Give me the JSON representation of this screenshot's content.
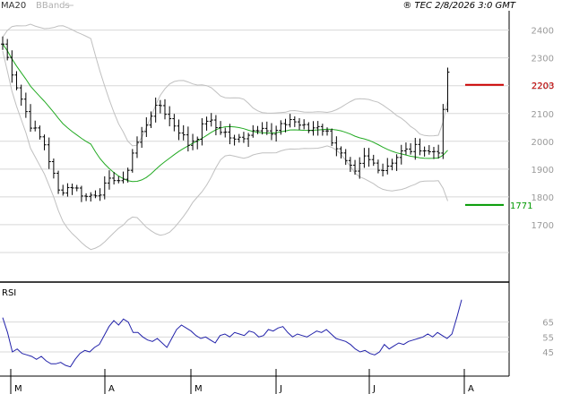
{
  "header": {
    "ma_label": "MA20",
    "bb_label": "BBands",
    "timestamp": "® TEC 2/8/2026 3:0 GMT"
  },
  "colors": {
    "ma": "#22aa22",
    "bbands": "#c0c0c0",
    "bars": "#000000",
    "rsi": "#2222aa",
    "resistance": "#cc0000",
    "support": "#009900",
    "grid": "#d8d8d8"
  },
  "chart_data": [
    {
      "type": "ohlc",
      "ma_label": "MA20",
      "bb_label": "BBands",
      "y_ticks": [
        "2400",
        "2300",
        "2200",
        "2100",
        "2000",
        "1900",
        "1800",
        "1700"
      ],
      "ylim": [
        1500,
        2460
      ],
      "x_month_labels": [
        "M",
        "A",
        "M",
        "J",
        "J",
        "A"
      ],
      "price_path": [
        [
          0,
          2350
        ],
        [
          3,
          2200
        ],
        [
          6,
          2060
        ],
        [
          9,
          1990
        ],
        [
          12,
          1820
        ],
        [
          15,
          1840
        ],
        [
          18,
          1800
        ],
        [
          21,
          1820
        ],
        [
          24,
          1870
        ],
        [
          26,
          1850
        ],
        [
          28,
          1960
        ],
        [
          30,
          2030
        ],
        [
          32,
          2100
        ],
        [
          34,
          2130
        ],
        [
          36,
          2080
        ],
        [
          38,
          2040
        ],
        [
          40,
          1990
        ],
        [
          42,
          2020
        ],
        [
          44,
          2080
        ],
        [
          46,
          2050
        ],
        [
          48,
          2030
        ],
        [
          50,
          2000
        ],
        [
          52,
          2020
        ],
        [
          54,
          2040
        ],
        [
          56,
          2060
        ],
        [
          58,
          2020
        ],
        [
          60,
          2050
        ],
        [
          62,
          2080
        ],
        [
          64,
          2060
        ],
        [
          66,
          2040
        ],
        [
          68,
          2060
        ],
        [
          70,
          2030
        ],
        [
          72,
          1980
        ],
        [
          74,
          1920
        ],
        [
          76,
          1880
        ],
        [
          78,
          1940
        ],
        [
          80,
          1920
        ],
        [
          82,
          1900
        ],
        [
          84,
          1930
        ],
        [
          86,
          1960
        ],
        [
          88,
          1970
        ],
        [
          90,
          1980
        ],
        [
          92,
          1960
        ],
        [
          94,
          1970
        ],
        [
          95,
          2100
        ],
        [
          96,
          2250
        ]
      ],
      "resistance": {
        "label": "2203",
        "value": 2203
      },
      "support": {
        "label": "1771",
        "value": 1771
      }
    },
    {
      "type": "line",
      "name": "RSI",
      "ylim": [
        30,
        90
      ],
      "y_ticks": [
        "65",
        "55",
        "45"
      ],
      "values": [
        68,
        58,
        45,
        47,
        44,
        43,
        42,
        40,
        42,
        39,
        37,
        37,
        38,
        36,
        35,
        40,
        44,
        46,
        45,
        48,
        50,
        56,
        62,
        66,
        63,
        67,
        65,
        58,
        58,
        55,
        53,
        52,
        54,
        51,
        48,
        54,
        60,
        63,
        61,
        59,
        56,
        54,
        55,
        53,
        51,
        56,
        57,
        55,
        58,
        57,
        56,
        59,
        58,
        55,
        56,
        60,
        59,
        61,
        62,
        58,
        55,
        57,
        56,
        55,
        57,
        59,
        58,
        60,
        57,
        54,
        53,
        52,
        50,
        47,
        45,
        46,
        44,
        43,
        45,
        50,
        47,
        49,
        51,
        50,
        52,
        53,
        54,
        55,
        57,
        55,
        58,
        56,
        54,
        57,
        68,
        80
      ]
    }
  ]
}
